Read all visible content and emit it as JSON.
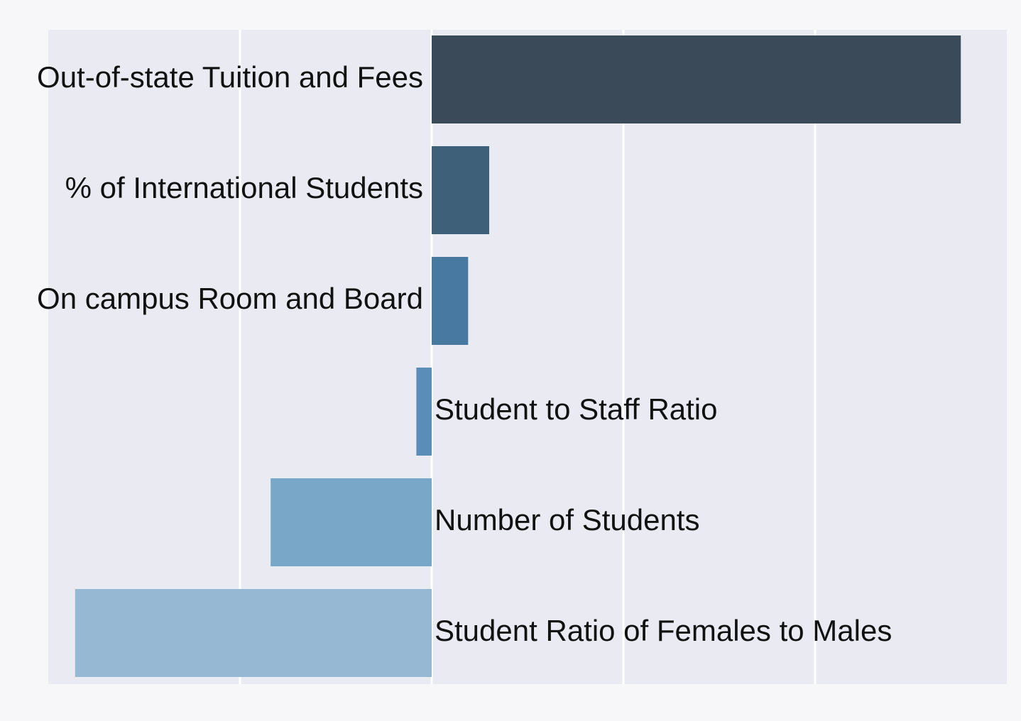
{
  "chart_data": {
    "type": "bar",
    "orientation": "horizontal",
    "categories": [
      "Out-of-state Tuition and Fees",
      "% of International Students",
      "On campus Room and Board",
      "Student to Staff Ratio",
      "Number of Students",
      "Student Ratio of Females to Males"
    ],
    "values": [
      1.38,
      0.15,
      0.095,
      -0.04,
      -0.42,
      -0.93
    ],
    "xlim": [
      -1.0,
      1.5
    ],
    "grid": true,
    "legend": "none",
    "title": "",
    "xlabel": "",
    "ylabel": "",
    "colors": [
      "#3a4a59",
      "#3e6079",
      "#4879a0",
      "#5a8db8",
      "#78a7c7",
      "#96b8d2"
    ],
    "plot_background": "#eaeaf2",
    "grid_color": "#ffffff"
  }
}
